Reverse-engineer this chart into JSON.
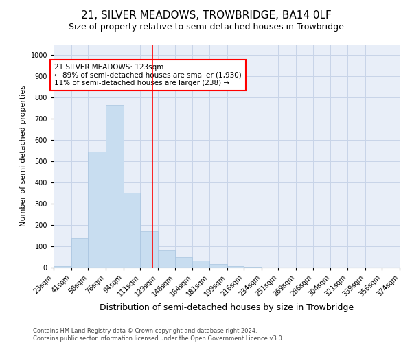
{
  "title_line1": "21, SILVER MEADOWS, TROWBRIDGE, BA14 0LF",
  "title_line2": "Size of property relative to semi-detached houses in Trowbridge",
  "xlabel": "Distribution of semi-detached houses by size in Trowbridge",
  "ylabel": "Number of semi-detached properties",
  "bar_color": "#c8ddf0",
  "bar_edge_color": "#a8c4e0",
  "vline_color": "red",
  "vline_x": 123,
  "annotation_text": "21 SILVER MEADOWS: 123sqm\n← 89% of semi-detached houses are smaller (1,930)\n11% of semi-detached houses are larger (238) →",
  "annotation_box_color": "white",
  "annotation_box_edge": "red",
  "bins": [
    23,
    41,
    58,
    76,
    94,
    111,
    129,
    146,
    164,
    181,
    199,
    216,
    234,
    251,
    269,
    286,
    304,
    321,
    339,
    356,
    374
  ],
  "counts": [
    8,
    140,
    545,
    765,
    353,
    170,
    80,
    48,
    32,
    15,
    8,
    4,
    0,
    0,
    0,
    0,
    0,
    0,
    0,
    0
  ],
  "ylim": [
    0,
    1050
  ],
  "yticks": [
    0,
    100,
    200,
    300,
    400,
    500,
    600,
    700,
    800,
    900,
    1000
  ],
  "grid_color": "#c8d4e8",
  "background_color": "#e8eef8",
  "footer_text": "Contains HM Land Registry data © Crown copyright and database right 2024.\nContains public sector information licensed under the Open Government Licence v3.0.",
  "title_fontsize": 11,
  "subtitle_fontsize": 9,
  "tick_label_fontsize": 7,
  "ylabel_fontsize": 8,
  "xlabel_fontsize": 9,
  "annotation_fontsize": 7.5
}
